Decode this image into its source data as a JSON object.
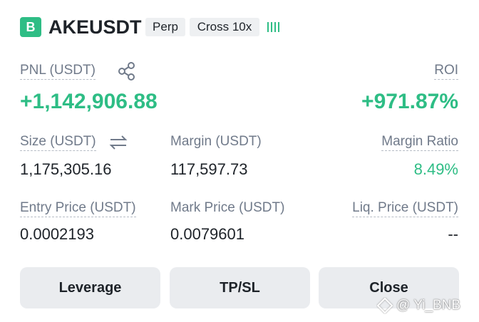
{
  "header": {
    "badge": "B",
    "symbol": "AKEUSDT",
    "tags": [
      "Perp",
      "Cross 10x"
    ]
  },
  "pnl": {
    "label": "PNL (USDT)",
    "value": "+1,142,906.88"
  },
  "roi": {
    "label": "ROI",
    "value": "+971.87%"
  },
  "fields": [
    {
      "label": "Size (USDT)",
      "value": "1,175,305.16"
    },
    {
      "label": "Margin (USDT)",
      "value": "117,597.73"
    },
    {
      "label": "Margin Ratio",
      "value": "8.49%"
    },
    {
      "label": "Entry Price (USDT)",
      "value": "0.0002193"
    },
    {
      "label": "Mark Price (USDT)",
      "value": "0.0079601"
    },
    {
      "label": "Liq. Price (USDT)",
      "value": "--"
    }
  ],
  "buttons": [
    "Leverage",
    "TP/SL",
    "Close"
  ],
  "watermark": "@ Yi_BNB"
}
